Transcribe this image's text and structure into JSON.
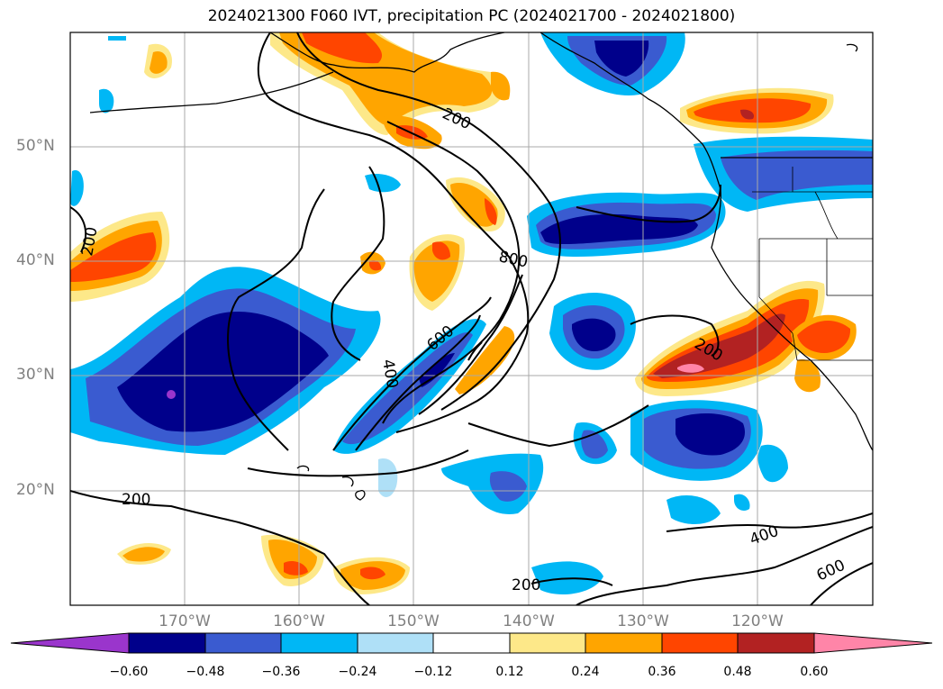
{
  "title": "2024021300 F060 IVT, precipitation PC (2024021700 - 2024021800)",
  "latitude_labels": [
    "50°N",
    "40°N",
    "30°N",
    "20°N"
  ],
  "longitude_labels": [
    "170°W",
    "160°W",
    "150°W",
    "140°W",
    "130°W",
    "120°W"
  ],
  "contour_labels": [
    "200",
    "200",
    "200",
    "200",
    "200",
    "400",
    "400",
    "600",
    "600",
    "800"
  ],
  "colorbar": {
    "tick_labels": [
      "−0.60",
      "−0.48",
      "−0.36",
      "−0.24",
      "−0.12",
      "0.12",
      "0.24",
      "0.36",
      "0.48",
      "0.60"
    ],
    "colors": [
      "#9a35cc",
      "#00008b",
      "#3a5bd0",
      "#00b7f5",
      "#afe0f7",
      "#ffffff",
      "#fde889",
      "#ffa500",
      "#ff4500",
      "#b22222",
      "#ff85a8"
    ]
  },
  "colors": {
    "coast": "#000000",
    "grid": "#a9a9a9",
    "contour": "#000000"
  }
}
